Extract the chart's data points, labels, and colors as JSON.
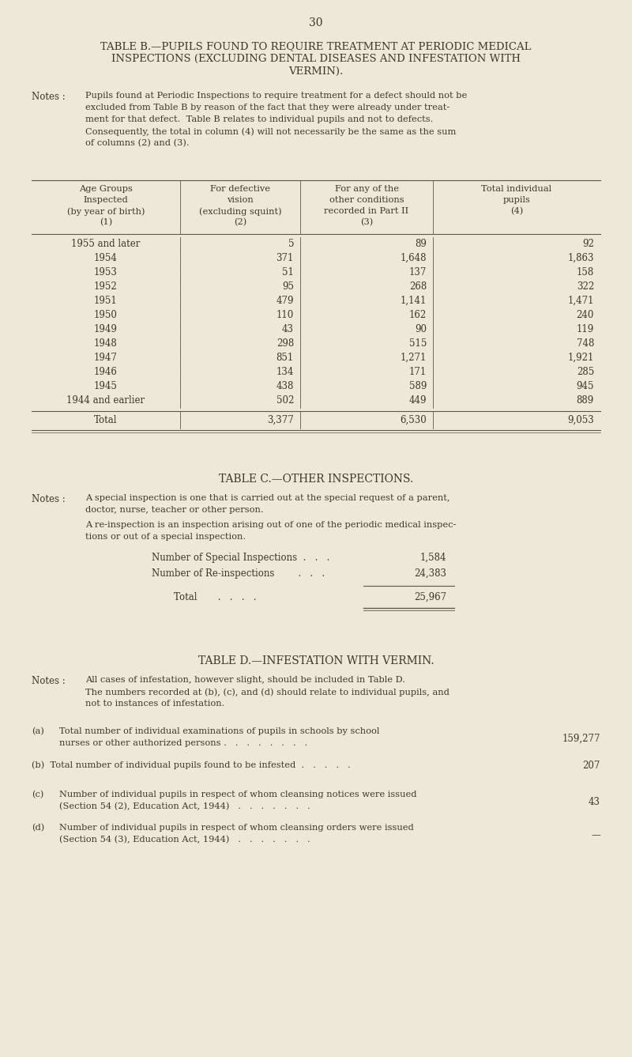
{
  "bg_color": "#ede8d8",
  "text_color": "#3a3a2a",
  "page_number": "30",
  "table_b_title": [
    "TABLE B.—PUPILS FOUND TO REQUIRE TREATMENT AT PERIODIC MEDICAL",
    "INSPECTIONS (EXCLUDING DENTAL DISEASES AND INFESTATION WITH",
    "VERMIN)."
  ],
  "table_b_notes_label": "Notes :",
  "table_b_notes_body": [
    "Pupils found at Periodic Inspections to require treatment for a defect should not be",
    "excluded from Table B by reason of the fact that they were already under treat-",
    "ment for that defect.  Table B relates to individual pupils and not to defects.",
    "Consequently, the total in column (4) will not necessarily be the same as the sum",
    "of columns (2) and (3)."
  ],
  "table_b_col1_lines": [
    "Age Groups",
    "Inspected",
    "(by year of birth)",
    "(1)"
  ],
  "table_b_col2_lines": [
    "For defective",
    "vision",
    "(excluding squint)",
    "(2)"
  ],
  "table_b_col3_lines": [
    "For any of the",
    "other conditions",
    "recorded in Part II",
    "(3)"
  ],
  "table_b_col4_lines": [
    "Total individual",
    "pupils",
    "(4)"
  ],
  "table_b_rows": [
    [
      "1955 and later",
      "5",
      "89",
      "92"
    ],
    [
      "1954",
      "371",
      "1,648",
      "1,863"
    ],
    [
      "1953",
      "51",
      "137",
      "158"
    ],
    [
      "1952",
      "95",
      "268",
      "322"
    ],
    [
      "1951",
      "479",
      "1,141",
      "1,471"
    ],
    [
      "1950",
      "110",
      "162",
      "240"
    ],
    [
      "1949",
      "43",
      "90",
      "119"
    ],
    [
      "1948",
      "298",
      "515",
      "748"
    ],
    [
      "1947",
      "851",
      "1,271",
      "1,921"
    ],
    [
      "1946",
      "134",
      "171",
      "285"
    ],
    [
      "1945",
      "438",
      "589",
      "945"
    ],
    [
      "1944 and earlier",
      "502",
      "449",
      "889"
    ]
  ],
  "table_b_total": [
    "Total",
    "3,377",
    "6,530",
    "9,053"
  ],
  "table_c_title": "TABLE C.—OTHER INSPECTIONS.",
  "table_c_notes_label": "Notes :",
  "table_c_notes_p1": [
    "A special inspection is one that is carried out at the special request of a parent,",
    "doctor, nurse, teacher or other person."
  ],
  "table_c_notes_p2": [
    "A re-inspection is an inspection arising out of one of the periodic medical inspec-",
    "tions or out of a special inspection."
  ],
  "table_c_rows": [
    [
      "Number of Special Inspections  .   .   .",
      "1,584"
    ],
    [
      "Number of Re-inspections        .   .   .",
      "24,383"
    ]
  ],
  "table_c_total": [
    "Total       .   .   .   .",
    "25,967"
  ],
  "table_d_title": "TABLE D.—INFESTATION WITH VERMIN.",
  "table_d_notes_label": "Notes :",
  "table_d_notes_body": [
    "All cases of infestation, however slight, should be included in Table D.",
    "The numbers recorded at (b), (c), and (d) should relate to individual pupils, and",
    "not to instances of infestation."
  ],
  "table_d_a_lines": [
    "(a)",
    "Total number of individual examinations of pupils in schools by school",
    "nurses or other authorized persons .   .   .   .   .   .   .   ."
  ],
  "table_d_a_value": "159,277",
  "table_d_b_line": "(b)  Total number of individual pupils found to be infested  .   .   .   .   .",
  "table_d_b_value": "207",
  "table_d_c_lines": [
    "(c)",
    "Number of individual pupils in respect of whom cleansing notices were issued",
    "(Section 54 (2), Education Act, 1944)   .   .   .   .   .   .   ."
  ],
  "table_d_c_value": "43",
  "table_d_d_lines": [
    "(d)",
    "Number of individual pupils in respect of whom cleansing orders were issued",
    "(Section 54 (3), Education Act, 1944)   .   .   .   .   .   .   ."
  ],
  "table_d_d_value": "—"
}
